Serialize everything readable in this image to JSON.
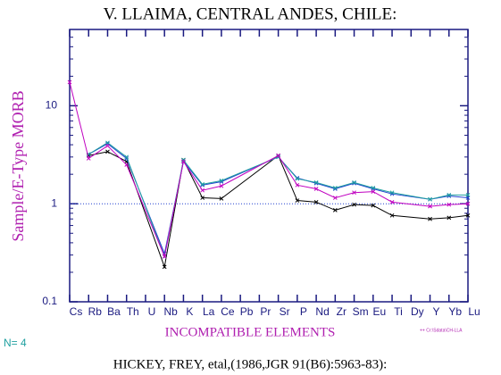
{
  "chart_data": {
    "type": "line",
    "title": "V. LLAIMA, CENTRAL ANDES, CHILE:",
    "y_label": "Sample/E-Type MORB",
    "x_label": "INCOMPATIBLE ELEMENTS",
    "n_label": "N= 4",
    "file_note": "++ Cr:\\Sdata\\CH-LLA",
    "reference": "HICKEY, FREY, etal,(1986,JGR 91(B6):5963-83):",
    "log_y": true,
    "ylim": [
      0.1,
      60
    ],
    "yticks": [
      0.1,
      1,
      10
    ],
    "reference_line": 1,
    "xlim": [
      0,
      21
    ],
    "xticks": [
      {
        "value": 0,
        "label": "Cs"
      },
      {
        "value": 1,
        "label": "Rb"
      },
      {
        "value": 2,
        "label": "Ba"
      },
      {
        "value": 3,
        "label": "Th"
      },
      {
        "value": 4,
        "label": "U"
      },
      {
        "value": 5,
        "label": "Nb"
      },
      {
        "value": 6,
        "label": "K"
      },
      {
        "value": 7,
        "label": "La"
      },
      {
        "value": 8,
        "label": "Ce"
      },
      {
        "value": 9,
        "label": "Pb"
      },
      {
        "value": 10,
        "label": "Pr"
      },
      {
        "value": 11,
        "label": "Sr"
      },
      {
        "value": 12,
        "label": "P"
      },
      {
        "value": 13,
        "label": "Nd"
      },
      {
        "value": 14,
        "label": "Zr"
      },
      {
        "value": 15,
        "label": "Sm"
      },
      {
        "value": 16,
        "label": "Eu"
      },
      {
        "value": 17,
        "label": "Ti"
      },
      {
        "value": 18,
        "label": "Dy"
      },
      {
        "value": 19,
        "label": "Y"
      },
      {
        "value": 20,
        "label": "Yb"
      },
      {
        "value": 21,
        "label": "Lu"
      }
    ],
    "x": [
      0,
      1,
      2,
      3,
      5,
      6,
      7,
      8,
      11,
      12,
      13,
      14,
      15,
      16,
      17,
      19,
      20,
      21
    ],
    "series": [
      {
        "color": "#000000",
        "values": [
          null,
          3.1,
          3.4,
          2.7,
          0.227,
          2.8,
          1.15,
          1.13,
          3.1,
          1.08,
          1.04,
          0.86,
          0.98,
          0.96,
          0.76,
          0.7,
          0.72,
          0.76
        ]
      },
      {
        "color": "#2040d0",
        "values": [
          null,
          3.2,
          4.1,
          2.9,
          0.31,
          2.7,
          1.55,
          1.68,
          3.0,
          1.83,
          1.62,
          1.42,
          1.62,
          1.42,
          1.26,
          1.11,
          1.2,
          1.15
        ]
      },
      {
        "color": "#20a0a0",
        "values": [
          null,
          3.2,
          4.2,
          3.0,
          0.29,
          2.8,
          1.58,
          1.72,
          3.0,
          1.8,
          1.65,
          1.45,
          1.65,
          1.45,
          1.3,
          1.11,
          1.23,
          1.23
        ]
      },
      {
        "color": "#c000c0",
        "values": [
          17.4,
          2.9,
          3.9,
          2.5,
          0.29,
          2.7,
          1.37,
          1.52,
          3.1,
          1.55,
          1.42,
          1.15,
          1.3,
          1.33,
          1.04,
          0.94,
          0.98,
          1.0
        ]
      }
    ]
  }
}
